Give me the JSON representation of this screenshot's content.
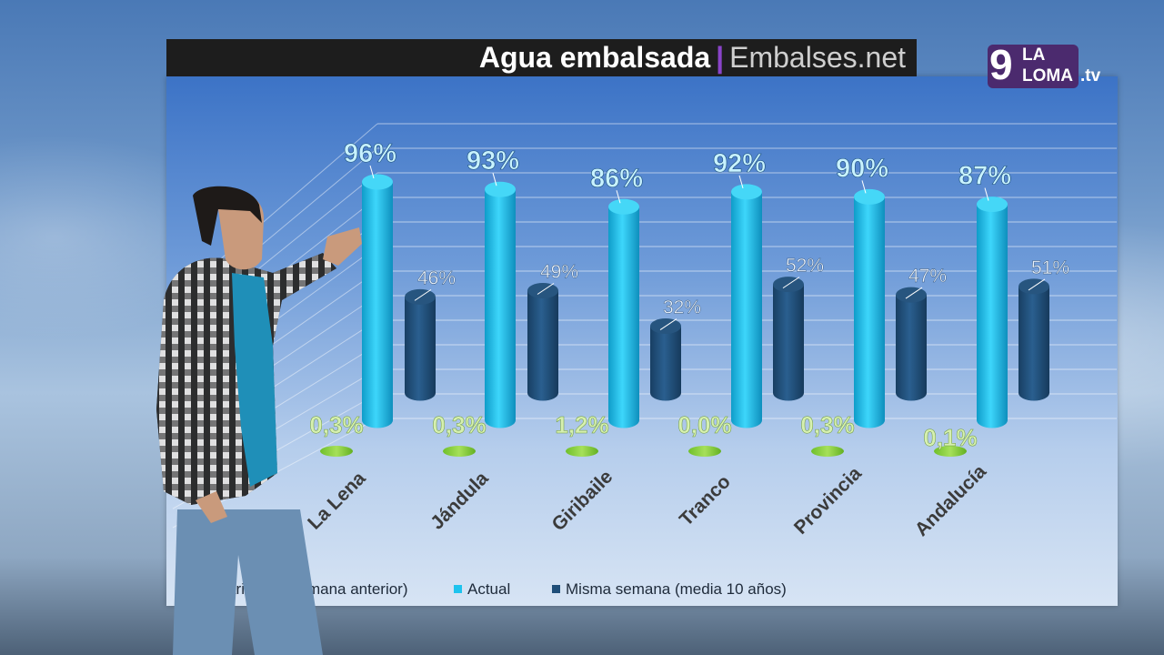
{
  "header": {
    "title": "Agua embalsada",
    "separator": "|",
    "source": "Embalses.net"
  },
  "logo": {
    "number": "9",
    "line1": "LA",
    "line2": "LOMA",
    "suffix": ".tv"
  },
  "legend": {
    "items": [
      {
        "label": "Variación (semana anterior)",
        "color": "#8fd14f"
      },
      {
        "label": "Actual",
        "color": "#1ec3ee"
      },
      {
        "label": "Misma semana (media 10 años)",
        "color": "#1f4e79"
      }
    ]
  },
  "chart_data": {
    "type": "bar",
    "categories": [
      "La Lena",
      "Jándula",
      "Giribaile",
      "Tranco",
      "Provincia",
      "Andalucía"
    ],
    "series": [
      {
        "name": "Variación (semana anterior)",
        "values": [
          0.3,
          0.3,
          1.2,
          0.0,
          0.3,
          0.1
        ],
        "labels": [
          "0,3%",
          "0,3%",
          "1,2%",
          "0,0%",
          "0,3%",
          "0,1%"
        ],
        "color": "#8fd14f"
      },
      {
        "name": "Actual",
        "values": [
          96,
          93,
          86,
          92,
          90,
          87
        ],
        "labels": [
          "96%",
          "93%",
          "86%",
          "92%",
          "90%",
          "87%"
        ],
        "color": "#1ec3ee"
      },
      {
        "name": "Misma semana (media 10 años)",
        "values": [
          46,
          49,
          32,
          52,
          47,
          51
        ],
        "labels": [
          "46%",
          "49%",
          "32%",
          "52%",
          "47%",
          "51%"
        ],
        "color": "#1f4e79"
      }
    ],
    "ylim": [
      0,
      100
    ],
    "grid": true,
    "legend_position": "bottom"
  }
}
